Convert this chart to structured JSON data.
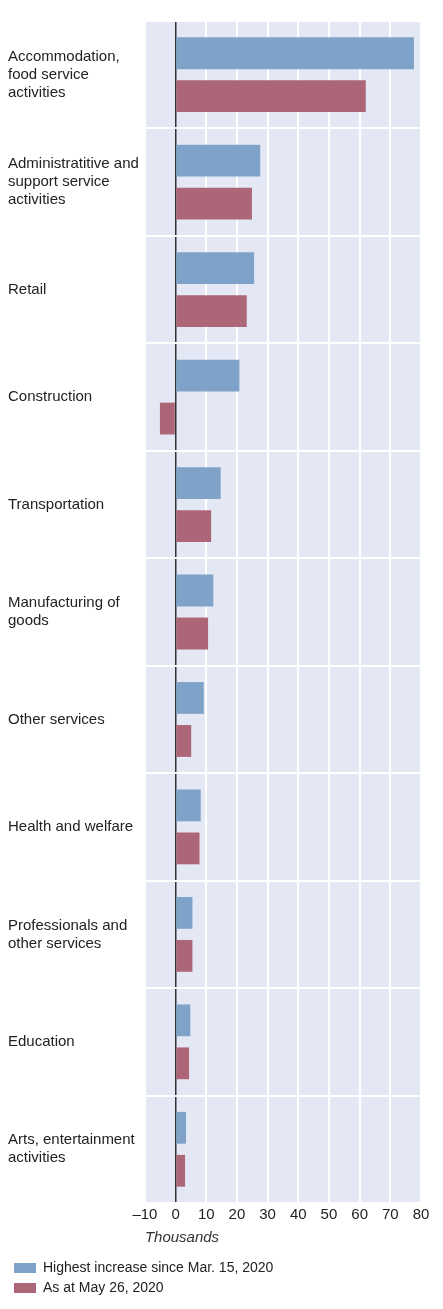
{
  "chart_data": {
    "type": "bar",
    "orientation": "horizontal",
    "xlabel": "Thousands",
    "categories": [
      "Accommodation, food service activities",
      "Administratitive and support service activities",
      "Retail",
      "Construction",
      "Transportation",
      "Manufacturing of goods",
      "Other services",
      "Health and welfare",
      "Professionals and other services",
      "Education",
      "Arts, entertainment activities"
    ],
    "series": [
      {
        "name": "Highest increase since Mar. 15, 2020",
        "color": "#7fa3c8",
        "values": [
          77.7,
          27.6,
          25.6,
          20.8,
          14.7,
          12.3,
          9.2,
          8.2,
          5.5,
          4.8,
          3.4
        ]
      },
      {
        "name": "As at May 26, 2020",
        "color": "#ad6677",
        "values": [
          62.0,
          24.9,
          23.2,
          -5.1,
          11.6,
          10.6,
          5.1,
          7.8,
          5.5,
          4.4,
          3.1
        ]
      }
    ],
    "xlim": [
      -10,
      80
    ],
    "xticks": [
      {
        "value": -10,
        "label": "–10"
      },
      0,
      10,
      20,
      30,
      40,
      50,
      60,
      70,
      80
    ],
    "grid": true,
    "legend": "bottom"
  }
}
